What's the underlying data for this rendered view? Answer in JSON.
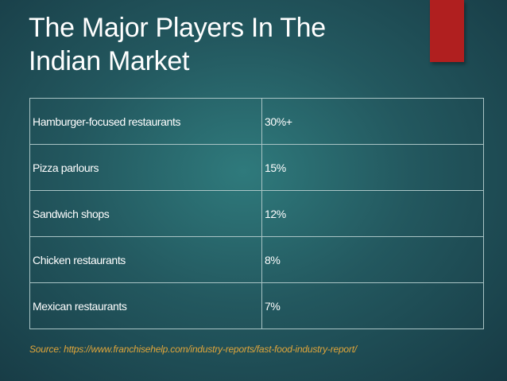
{
  "slide": {
    "title_line1": "The Major Players In The",
    "title_line2": "Indian Market",
    "source": "Source: https://www.franchisehelp.com/industry-reports/fast-food-industry-report/"
  },
  "table": {
    "rows": [
      {
        "category": "Hamburger-focused restaurants",
        "share": "30%+"
      },
      {
        "category": "Pizza parlours",
        "share": "15%"
      },
      {
        "category": "Sandwich shops",
        "share": "12%"
      },
      {
        "category": "Chicken restaurants",
        "share": "8%"
      },
      {
        "category": "Mexican restaurants",
        "share": "7%"
      }
    ]
  },
  "colors": {
    "accent": "#b01f1f",
    "source_text": "#e0a53a",
    "background": "#23585f"
  }
}
